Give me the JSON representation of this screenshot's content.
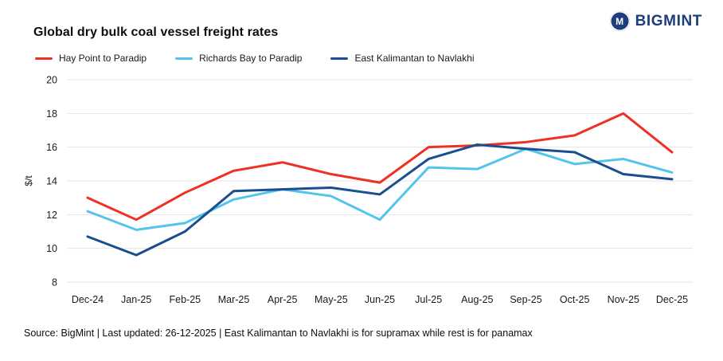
{
  "brand": {
    "name": "BIGMINT",
    "icon_letter": "M",
    "color": "#1d3d7b"
  },
  "chart_data": {
    "type": "line",
    "title": "Global dry bulk coal vessel freight rates",
    "x": [
      "Dec-24",
      "Jan-25",
      "Feb-25",
      "Mar-25",
      "Apr-25",
      "May-25",
      "Jun-25",
      "Jul-25",
      "Aug-25",
      "Sep-25",
      "Oct-25",
      "Nov-25",
      "Dec-25"
    ],
    "series": [
      {
        "name": "Hay Point to Paradip",
        "color": "#ee3124",
        "values": [
          13.0,
          11.7,
          13.3,
          14.6,
          15.1,
          14.4,
          13.9,
          16.0,
          16.1,
          16.3,
          16.7,
          18.0,
          15.7
        ]
      },
      {
        "name": "Richards Bay to Paradip",
        "color": "#54c4ec",
        "values": [
          12.2,
          11.1,
          11.5,
          12.9,
          13.5,
          13.1,
          11.7,
          14.8,
          14.7,
          15.9,
          15.0,
          15.3,
          14.5
        ]
      },
      {
        "name": "East Kalimantan to Navlakhi",
        "color": "#1b4e8f",
        "values": [
          10.7,
          9.6,
          11.0,
          13.4,
          13.5,
          13.6,
          13.2,
          15.3,
          16.15,
          15.9,
          15.7,
          14.4,
          14.1
        ]
      }
    ],
    "ylabel": "$/t",
    "ylim": [
      8,
      20
    ],
    "ytick_step": 2,
    "grid": "horizontal",
    "legend_position": "top-left"
  },
  "footer": {
    "source": "Source: BigMint | Last updated: 26-12-2025 | East Kalimantan to Navlakhi is for supramax while rest is for panamax"
  }
}
